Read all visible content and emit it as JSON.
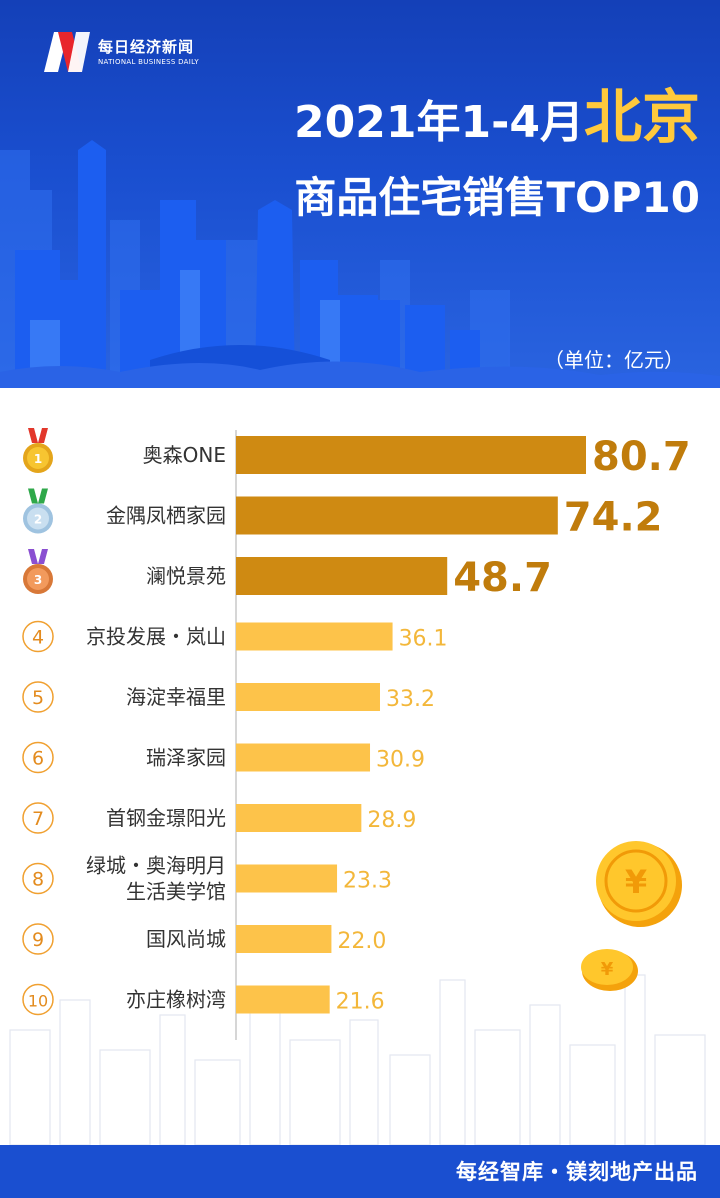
{
  "header": {
    "logo_cn": "每日经济新闻",
    "logo_en": "NATIONAL BUSINESS DAILY",
    "title_prefix": "2021年1-4月",
    "title_city": "北京",
    "title_line2": "商品住宅销售TOP10",
    "unit": "（单位：亿元）"
  },
  "colors": {
    "top3_bar": "#cf8a12",
    "top3_value": "#c07c0c",
    "other_bar": "#fdc34a",
    "other_value": "#f3b73a",
    "header_blue": "#1a4fd0",
    "gold": "#ffc93c"
  },
  "chart_data": {
    "type": "bar",
    "orientation": "horizontal",
    "title": "2021年1-4月北京商品住宅销售TOP10",
    "unit": "（单位：亿元）",
    "ranks": [
      "1",
      "2",
      "3",
      "4",
      "5",
      "6",
      "7",
      "8",
      "9",
      "10"
    ],
    "categories": [
      "奥森ONE",
      "金隅凤栖家园",
      "澜悦景苑",
      "京投发展・岚山",
      "海淀幸福里",
      "瑞泽家园",
      "首钢金璟阳光",
      "绿城・奥海明月\n生活美学馆",
      "国风尚城",
      "亦庄橡树湾"
    ],
    "values": [
      80.7,
      74.2,
      48.7,
      36.1,
      33.2,
      30.9,
      28.9,
      23.3,
      22.0,
      21.6
    ],
    "value_labels": [
      "80.7",
      "74.2",
      "48.7",
      "36.1",
      "33.2",
      "30.9",
      "28.9",
      "23.3",
      "22.0",
      "21.6"
    ],
    "rank_icons": [
      "gold-medal-icon",
      "silver-medal-icon",
      "bronze-medal-icon"
    ]
  },
  "footer": {
    "credit": "每经智库・镁刻地产出品"
  }
}
